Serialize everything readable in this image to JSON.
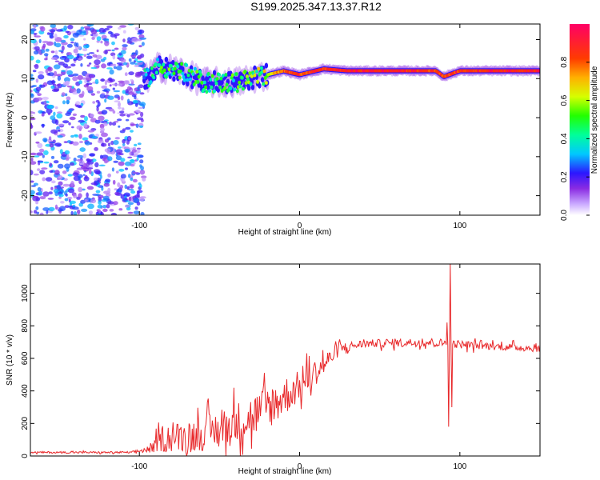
{
  "title": "S199.2025.347.13.37.R12",
  "colors": {
    "snr_line": "#e8282a",
    "axis": "#000000",
    "background": "#ffffff"
  },
  "chart_data": [
    {
      "type": "heatmap",
      "name": "spectrogram",
      "xlabel": "Height of straight line (km)",
      "ylabel": "Frequency (Hz)",
      "xlim": [
        -168,
        150
      ],
      "ylim": [
        -25,
        24
      ],
      "x_ticks": [
        {
          "value": -100,
          "label": "-100"
        },
        {
          "value": 0,
          "label": "0"
        },
        {
          "value": 100,
          "label": "100"
        }
      ],
      "y_ticks": [
        {
          "value": -20,
          "label": "-20"
        },
        {
          "value": -10,
          "label": "-10"
        },
        {
          "value": 0,
          "label": "0"
        },
        {
          "value": 10,
          "label": "10"
        },
        {
          "value": 20,
          "label": "20"
        }
      ],
      "colorbar": {
        "label": "Normalized spectral amplitude",
        "range": [
          0,
          1
        ],
        "ticks": [
          {
            "value": 0.0,
            "label": "0.0"
          },
          {
            "value": 0.2,
            "label": "0.2"
          },
          {
            "value": 0.4,
            "label": "0.4"
          },
          {
            "value": 0.6,
            "label": "0.6"
          },
          {
            "value": 0.8,
            "label": "0.8"
          }
        ]
      },
      "noise_region": {
        "x_range": [
          -168,
          -97
        ],
        "freq_range": [
          -25,
          24
        ],
        "amplitude": 0.15
      },
      "carrier_track": [
        {
          "x": -97,
          "freq": 9.5,
          "amplitude": 0.35
        },
        {
          "x": -88,
          "freq": 13,
          "amplitude": 0.45
        },
        {
          "x": -75,
          "freq": 12,
          "amplitude": 0.45
        },
        {
          "x": -60,
          "freq": 9,
          "amplitude": 0.45
        },
        {
          "x": -40,
          "freq": 9,
          "amplitude": 0.45
        },
        {
          "x": -25,
          "freq": 10.5,
          "amplitude": 0.55
        },
        {
          "x": -10,
          "freq": 12,
          "amplitude": 0.85
        },
        {
          "x": 0,
          "freq": 11,
          "amplitude": 0.9
        },
        {
          "x": 15,
          "freq": 12.5,
          "amplitude": 0.9
        },
        {
          "x": 30,
          "freq": 12,
          "amplitude": 0.95
        },
        {
          "x": 60,
          "freq": 12,
          "amplitude": 0.95
        },
        {
          "x": 85,
          "freq": 12,
          "amplitude": 0.9
        },
        {
          "x": 90,
          "freq": 10.5,
          "amplitude": 0.9
        },
        {
          "x": 100,
          "freq": 12,
          "amplitude": 0.9
        },
        {
          "x": 120,
          "freq": 12,
          "amplitude": 0.95
        },
        {
          "x": 150,
          "freq": 12,
          "amplitude": 0.95
        }
      ]
    },
    {
      "type": "line",
      "name": "snr",
      "xlabel": "Height of straight line (km)",
      "ylabel": "SNR (10 * v/v)",
      "xlim": [
        -168,
        150
      ],
      "ylim": [
        0,
        1180
      ],
      "x_ticks": [
        {
          "value": -100,
          "label": "-100"
        },
        {
          "value": 0,
          "label": "0"
        },
        {
          "value": 100,
          "label": "100"
        }
      ],
      "y_ticks": [
        {
          "value": 0,
          "label": "0"
        },
        {
          "value": 200,
          "label": "200"
        },
        {
          "value": 400,
          "label": "400"
        },
        {
          "value": 600,
          "label": "600"
        },
        {
          "value": 800,
          "label": "800"
        },
        {
          "value": 1000,
          "label": "1000"
        }
      ],
      "step": 0.5,
      "envelope": [
        {
          "x": -168,
          "mean": 22,
          "spread": 10
        },
        {
          "x": -105,
          "mean": 22,
          "spread": 10
        },
        {
          "x": -92,
          "mean": 45,
          "spread": 40
        },
        {
          "x": -86,
          "mean": 110,
          "spread": 140
        },
        {
          "x": -70,
          "mean": 120,
          "spread": 160
        },
        {
          "x": -50,
          "mean": 160,
          "spread": 200
        },
        {
          "x": -30,
          "mean": 240,
          "spread": 230
        },
        {
          "x": -15,
          "mean": 330,
          "spread": 220
        },
        {
          "x": 0,
          "mean": 430,
          "spread": 160
        },
        {
          "x": 15,
          "mean": 560,
          "spread": 120
        },
        {
          "x": 25,
          "mean": 660,
          "spread": 60
        },
        {
          "x": 40,
          "mean": 690,
          "spread": 40
        },
        {
          "x": 80,
          "mean": 700,
          "spread": 45
        },
        {
          "x": 110,
          "mean": 680,
          "spread": 40
        },
        {
          "x": 150,
          "mean": 660,
          "spread": 35
        }
      ],
      "spikes": [
        {
          "x": 92,
          "value": 820
        },
        {
          "x": 93,
          "value": 180
        },
        {
          "x": 94,
          "value": 1180
        },
        {
          "x": 95,
          "value": 300
        }
      ]
    }
  ]
}
